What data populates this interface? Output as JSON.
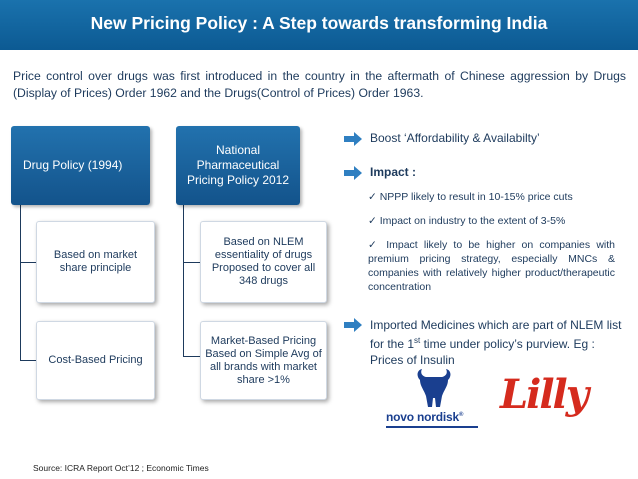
{
  "header": {
    "title": "New Pricing Policy  : A Step towards transforming India"
  },
  "intro": {
    "text": "Price control over drugs was first introduced in the country in the aftermath of Chinese aggression by Drugs (Display of Prices) Order 1962 and the Drugs(Control of Prices) Order 1963."
  },
  "left_column": {
    "title": "Drug Policy (1994)",
    "items": [
      "Based on market share principle",
      "Cost-Based Pricing"
    ]
  },
  "middle_column": {
    "title": "National Pharmaceutical Pricing Policy 2012",
    "items": [
      "Based on NLEM essentiality of drugs Proposed to cover all 348 drugs",
      "Market-Based Pricing Based on Simple Avg of all brands with market share >1%"
    ]
  },
  "right_column": {
    "boost": "Boost ‘Affordability & Availabilty’",
    "impact_label": "Impact :",
    "impacts": [
      "NPPP likely to result in 10-15% price cuts",
      "Impact on industry to the extent of 3-5%",
      "Impact likely to be higher on companies with premium pricing strategy, especially MNCs  & companies with relatively higher product/therapeutic concentration"
    ],
    "imported_pre": "Imported Medicines which are part of NLEM list for the 1",
    "imported_sup": "st",
    "imported_post": " time under policy’s  purview. Eg : Prices of Insulin"
  },
  "logos": {
    "novo": "novo nordisk",
    "novo_mark": "®",
    "lilly": "Lilly"
  },
  "source": "Source: ICRA Report Oct’12 ; Economic Times",
  "colors": {
    "header": "#1a72ad",
    "box": "#1b65a1",
    "text": "#1d3a5c",
    "lilly": "#d52b1e",
    "novo": "#1a3f8f"
  }
}
